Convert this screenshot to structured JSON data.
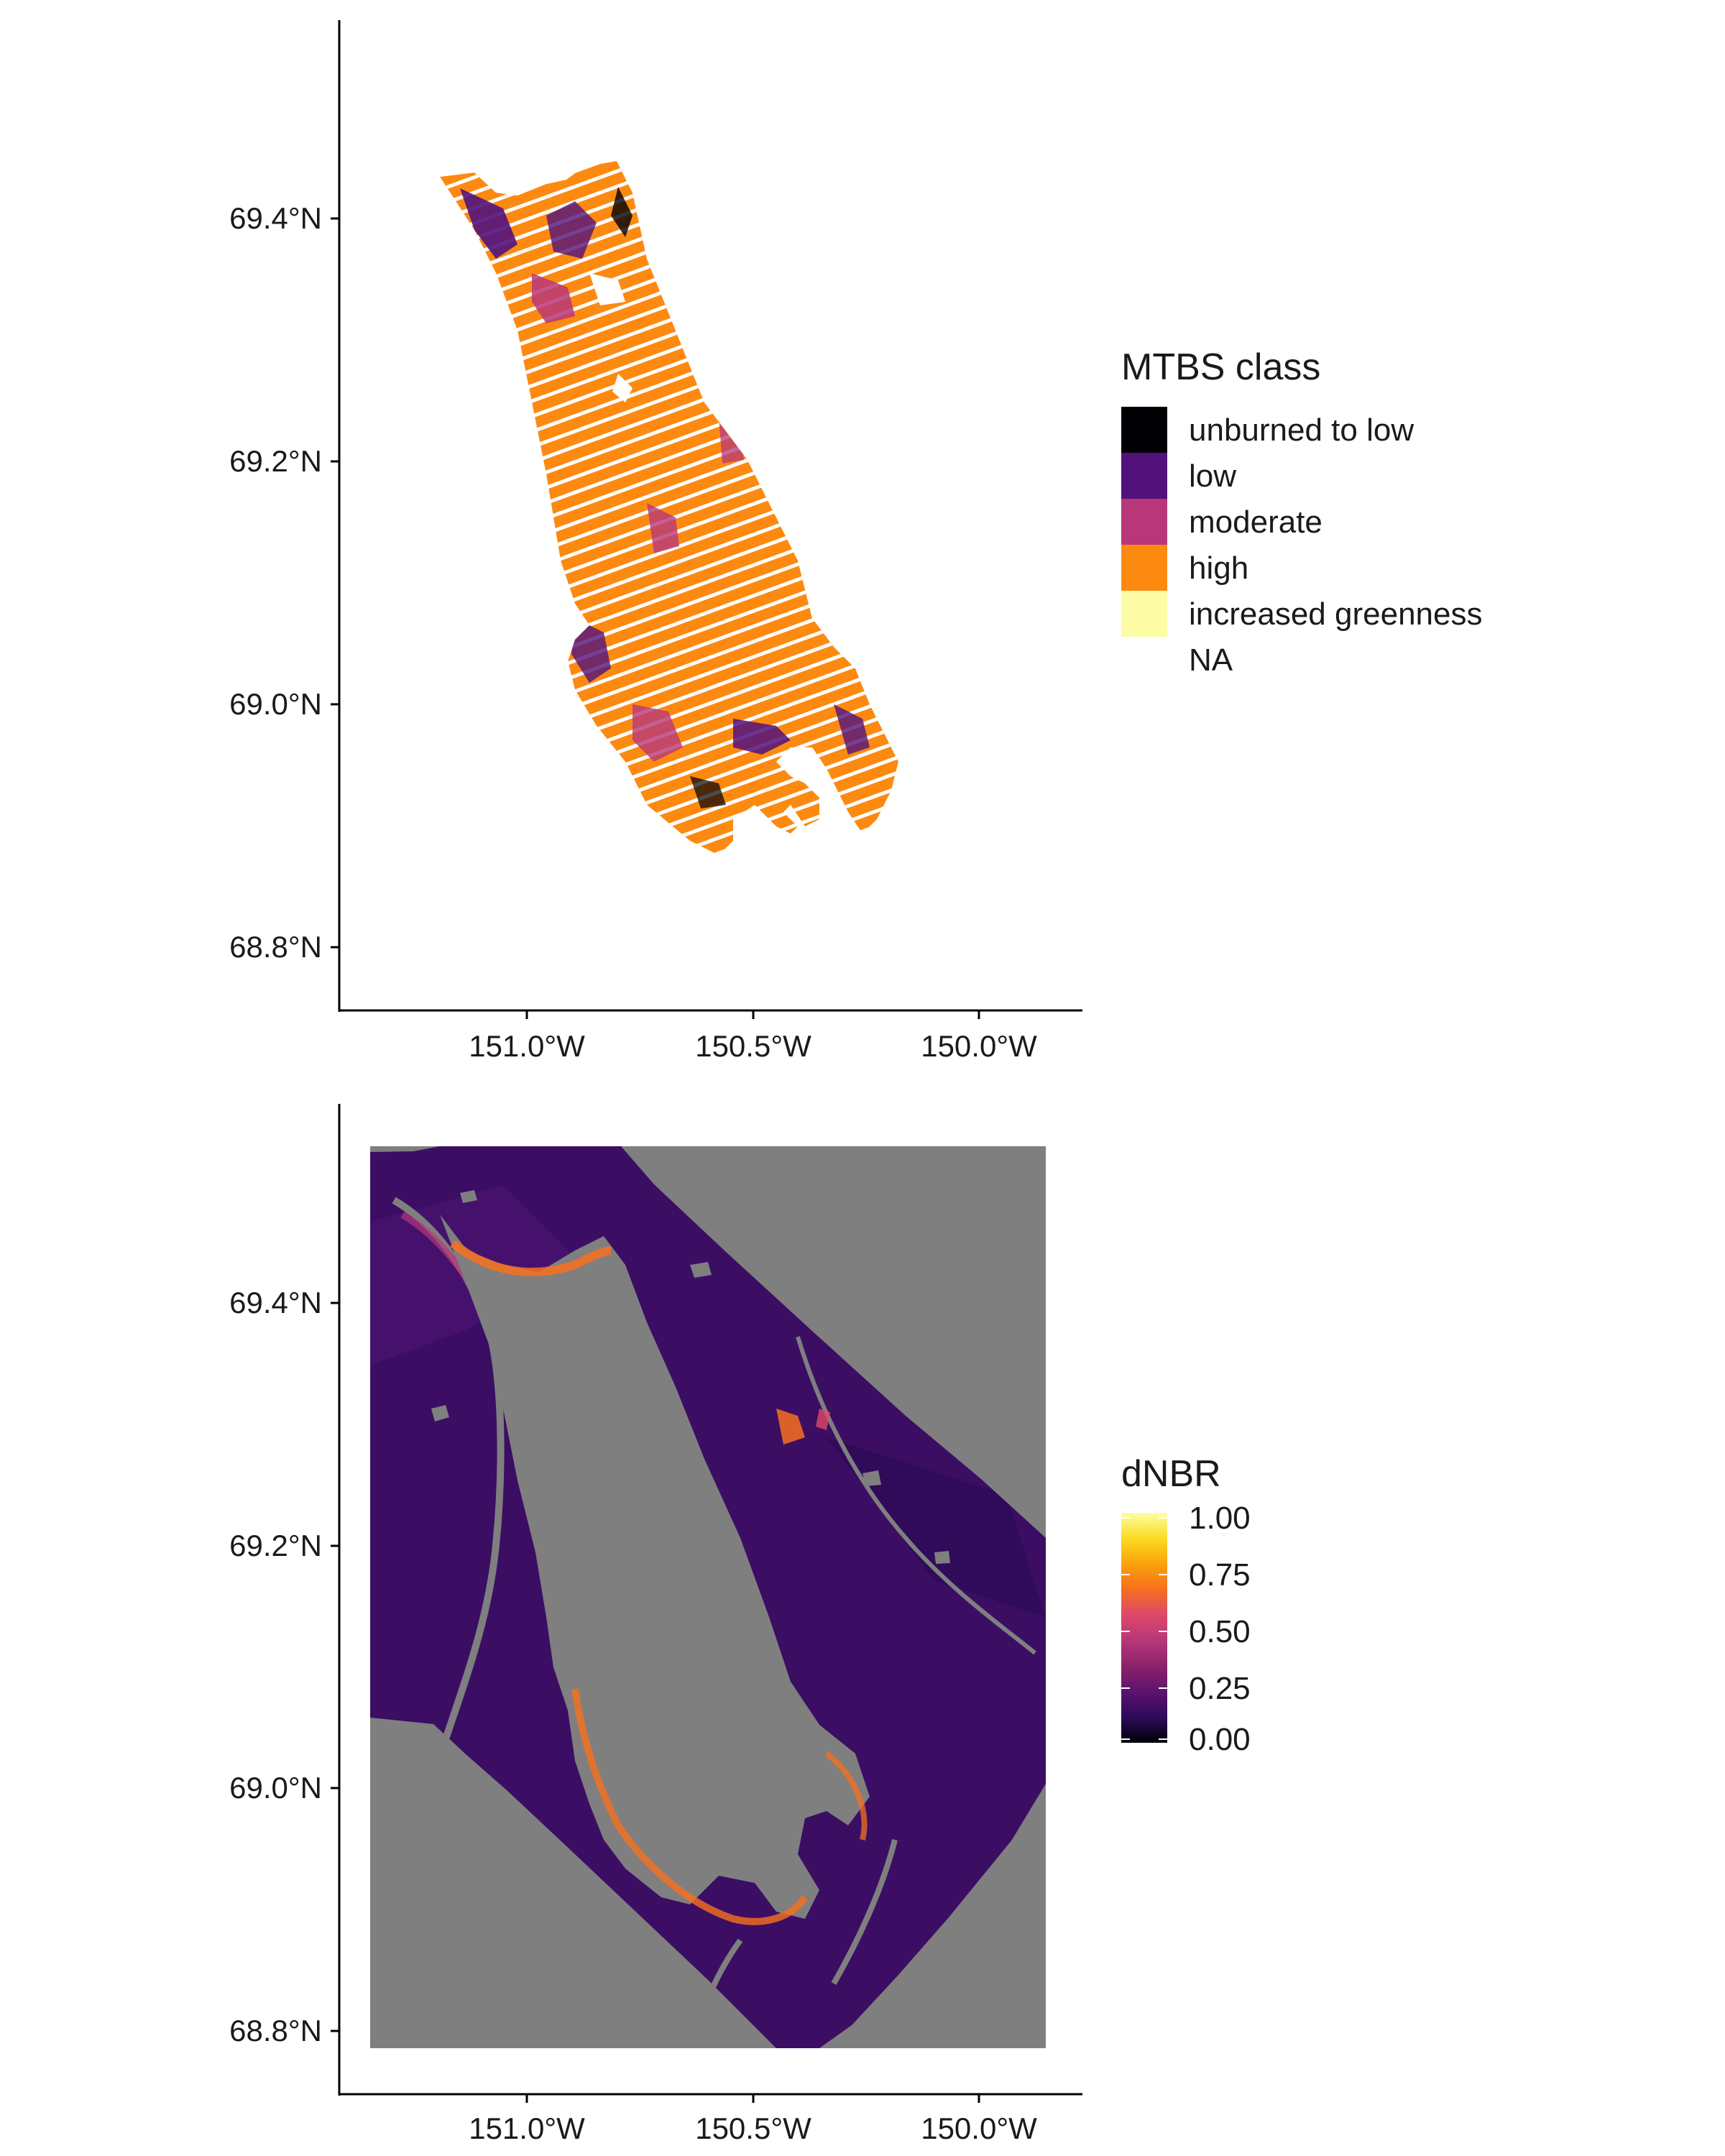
{
  "panels": [
    {
      "id": "top",
      "title": "",
      "y_ticks": [
        "69.4°N",
        "69.2°N",
        "69.0°N",
        "68.8°N"
      ],
      "x_ticks": [
        "151.0°W",
        "150.5°W",
        "150.0°W"
      ],
      "legend": {
        "title": "MTBS class",
        "type": "categorical",
        "items": [
          {
            "label": "unburned to low",
            "color": "#000004"
          },
          {
            "label": "low",
            "color": "#51127c"
          },
          {
            "label": "moderate",
            "color": "#b73779"
          },
          {
            "label": "high",
            "color": "#fc8a11"
          },
          {
            "label": "increased greenness",
            "color": "#fcfda4"
          },
          {
            "label": "NA",
            "color": "#ffffff"
          }
        ]
      }
    },
    {
      "id": "bottom",
      "title": "",
      "y_ticks": [
        "69.4°N",
        "69.2°N",
        "69.0°N",
        "68.8°N"
      ],
      "x_ticks": [
        "151.0°W",
        "150.5°W",
        "150.0°W"
      ],
      "legend": {
        "title": "dNBR",
        "type": "continuous",
        "ticks": [
          "1.00",
          "0.75",
          "0.50",
          "0.25",
          "0.00"
        ],
        "range": [
          0,
          1
        ],
        "na_color": "#7f7f7f",
        "colors": [
          "#000004",
          "#2d0b59",
          "#5c126e",
          "#8a226a",
          "#b5367a",
          "#de4968",
          "#f7701e",
          "#fba40a",
          "#f9dc24",
          "#fcffa4"
        ]
      }
    }
  ]
}
